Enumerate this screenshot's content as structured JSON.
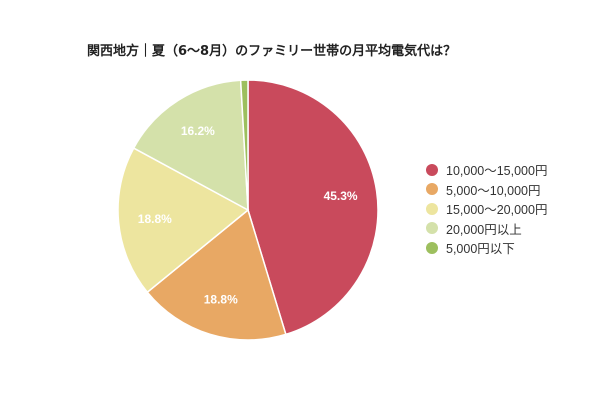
{
  "chart_data": {
    "type": "pie",
    "title": "関西地方｜夏（6〜8月）のファミリー世帯の月平均電気代は？",
    "categories": [
      "10,000〜15,000円",
      "5,000〜10,000円",
      "15,000〜20,000円",
      "20,000円以上",
      "5,000円以下"
    ],
    "values": [
      45.3,
      18.8,
      18.8,
      16.2,
      0.9
    ],
    "unit": "%",
    "colors": [
      "#c94a5c",
      "#e8a864",
      "#ede59f",
      "#d4e1aa",
      "#9dbf5e"
    ],
    "labels": [
      "45.3%",
      "18.8%",
      "18.8%",
      "16.2%",
      ""
    ],
    "legend_position": "right",
    "start_angle": "top, clockwise"
  },
  "legend": {
    "items": [
      {
        "label": "10,000〜15,000円",
        "color": "#c94a5c"
      },
      {
        "label": "5,000〜10,000円",
        "color": "#e8a864"
      },
      {
        "label": "15,000〜20,000円",
        "color": "#ede59f"
      },
      {
        "label": "20,000円以上",
        "color": "#d4e1aa"
      },
      {
        "label": "5,000円以下",
        "color": "#9dbf5e"
      }
    ]
  }
}
